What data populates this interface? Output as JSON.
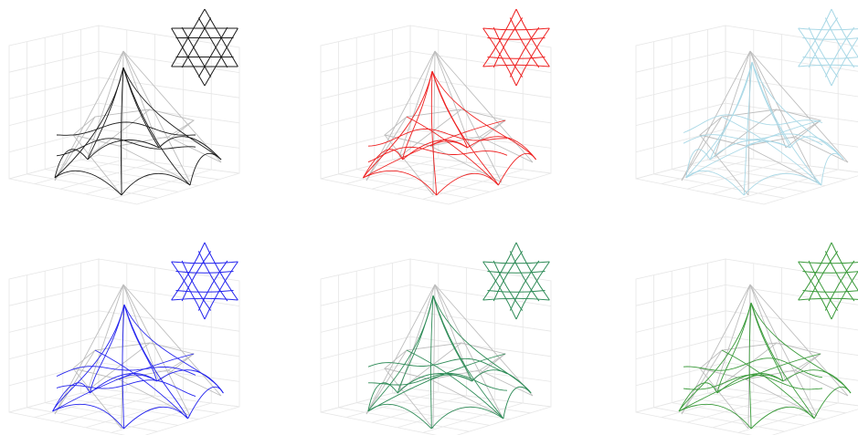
{
  "figure": {
    "panels": [
      {
        "name": "panel-black",
        "color": "#1a1a1a",
        "variant": 0
      },
      {
        "name": "panel-red",
        "color": "#ee2020",
        "variant": 1
      },
      {
        "name": "panel-lightblue",
        "color": "#a9d8e6",
        "variant": 2
      },
      {
        "name": "panel-blue",
        "color": "#2424ee",
        "variant": 3
      },
      {
        "name": "panel-seagreen",
        "color": "#2e8b57",
        "variant": 4
      },
      {
        "name": "panel-green",
        "color": "#3a9a3a",
        "variant": 5
      }
    ],
    "colors": {
      "reference_shape": "#bdbdbd",
      "grid": "#e6e6e6",
      "background": "#ffffff"
    },
    "icons": [
      "hexagram-pattern-icon",
      "pyramid-wireframe"
    ]
  }
}
